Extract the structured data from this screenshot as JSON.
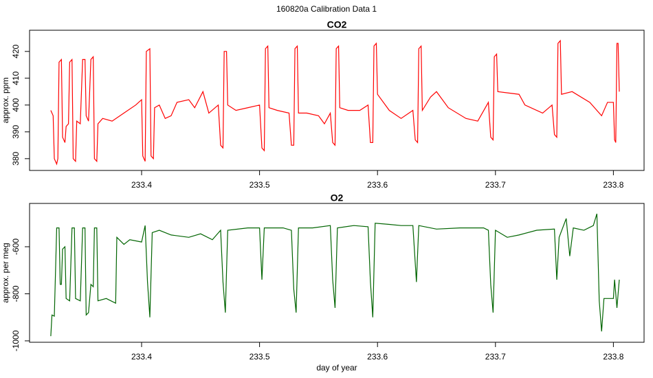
{
  "title": "160820a   Calibration Data 1",
  "chart_data": [
    {
      "type": "line",
      "title": "CO2",
      "ylabel": "approx. ppm",
      "color": "#ff0000",
      "xlim": [
        233.305,
        233.826
      ],
      "xticks": [
        233.4,
        233.5,
        233.6,
        233.7,
        233.8
      ],
      "ylim": [
        375.6,
        427.9
      ],
      "yticks": [
        380,
        390,
        400,
        410,
        420
      ],
      "x": [
        233.323,
        233.325,
        233.326,
        233.328,
        233.329,
        233.33,
        233.332,
        233.333,
        233.335,
        233.336,
        233.338,
        233.339,
        233.341,
        233.342,
        233.344,
        233.345,
        233.348,
        233.35,
        233.352,
        233.353,
        233.355,
        233.357,
        233.359,
        233.36,
        233.362,
        233.363,
        233.367,
        233.375,
        233.385,
        233.395,
        233.4,
        233.401,
        233.403,
        233.404,
        233.407,
        233.408,
        233.41,
        233.411,
        233.415,
        233.42,
        233.425,
        233.43,
        233.44,
        233.445,
        233.452,
        233.457,
        233.465,
        233.467,
        233.469,
        233.47,
        233.472,
        233.473,
        233.48,
        233.49,
        233.5,
        233.502,
        233.504,
        233.505,
        233.507,
        233.508,
        233.515,
        233.525,
        233.527,
        233.529,
        233.53,
        233.532,
        233.533,
        233.54,
        233.55,
        233.555,
        233.56,
        233.562,
        233.564,
        233.565,
        233.567,
        233.568,
        233.575,
        233.585,
        233.592,
        233.594,
        233.596,
        233.597,
        233.599,
        233.6,
        233.61,
        233.62,
        233.63,
        233.632,
        233.634,
        233.635,
        233.637,
        233.638,
        233.645,
        233.65,
        233.66,
        233.675,
        233.685,
        233.694,
        233.696,
        233.698,
        233.699,
        233.701,
        233.702,
        233.72,
        233.725,
        233.74,
        233.748,
        233.75,
        233.752,
        233.753,
        233.755,
        233.756,
        233.765,
        233.78,
        233.79,
        233.795,
        233.8,
        233.801,
        233.802,
        233.803,
        233.804,
        233.805
      ],
      "values": [
        398,
        396,
        380,
        378,
        380,
        416,
        417,
        388,
        386,
        392,
        393,
        416,
        417,
        380,
        379,
        394,
        393,
        417,
        417,
        396,
        394,
        417,
        418,
        380,
        379,
        393,
        395,
        394,
        397,
        400,
        402,
        381,
        379,
        420,
        421,
        381,
        380,
        399,
        400,
        395,
        396,
        401,
        402,
        399,
        405,
        397,
        400,
        385,
        384,
        420,
        420,
        400,
        398,
        399,
        400,
        384,
        383,
        421,
        422,
        399,
        398,
        397,
        385,
        385,
        421,
        422,
        397,
        397,
        396,
        393,
        397,
        386,
        385,
        421,
        422,
        399,
        398,
        398,
        400,
        386,
        386,
        422,
        423,
        404,
        398,
        395,
        398,
        387,
        386,
        421,
        422,
        398,
        403,
        405,
        399,
        395,
        394,
        401,
        388,
        387,
        418,
        419,
        405,
        404,
        400,
        397,
        400,
        389,
        388,
        423,
        424,
        404,
        405,
        401,
        396,
        401,
        401,
        387,
        386,
        423,
        423,
        405
      ]
    },
    {
      "type": "line",
      "title": "O2",
      "ylabel": "approx. per meg",
      "xlabel": "day of year",
      "color": "#006400",
      "xlim": [
        233.305,
        233.826
      ],
      "xticks": [
        233.4,
        233.5,
        233.6,
        233.7,
        233.8
      ],
      "ylim": [
        -1006,
        -416
      ],
      "yticks": [
        -1000,
        -800,
        -600
      ],
      "x": [
        233.323,
        233.324,
        233.326,
        233.328,
        233.33,
        233.331,
        233.332,
        233.333,
        233.335,
        233.336,
        233.339,
        233.341,
        233.343,
        233.344,
        233.348,
        233.35,
        233.352,
        233.353,
        233.355,
        233.357,
        233.359,
        233.36,
        233.362,
        233.363,
        233.37,
        233.378,
        233.379,
        233.385,
        233.39,
        233.4,
        233.403,
        233.405,
        233.407,
        233.409,
        233.415,
        233.425,
        233.44,
        233.45,
        233.46,
        233.467,
        233.469,
        233.471,
        233.473,
        233.49,
        233.5,
        233.502,
        233.504,
        233.52,
        233.527,
        233.529,
        233.531,
        233.533,
        233.545,
        233.56,
        233.562,
        233.564,
        233.566,
        233.58,
        233.592,
        233.594,
        233.596,
        233.598,
        233.61,
        233.62,
        233.63,
        233.633,
        233.635,
        233.65,
        233.67,
        233.69,
        233.694,
        233.696,
        233.698,
        233.7,
        233.71,
        233.72,
        233.735,
        233.75,
        233.752,
        233.754,
        233.76,
        233.763,
        233.766,
        233.775,
        233.783,
        233.786,
        233.788,
        233.79,
        233.792,
        233.8,
        233.801,
        233.803,
        233.805
      ],
      "values": [
        -980,
        -890,
        -895,
        -520,
        -520,
        -760,
        -760,
        -610,
        -600,
        -820,
        -830,
        -520,
        -520,
        -820,
        -830,
        -520,
        -520,
        -890,
        -880,
        -760,
        -770,
        -520,
        -520,
        -830,
        -820,
        -840,
        -560,
        -590,
        -570,
        -580,
        -510,
        -750,
        -900,
        -540,
        -530,
        -550,
        -560,
        -545,
        -570,
        -530,
        -750,
        -880,
        -530,
        -520,
        -520,
        -740,
        -520,
        -520,
        -530,
        -780,
        -880,
        -520,
        -520,
        -510,
        -740,
        -860,
        -520,
        -510,
        -515,
        -750,
        -900,
        -500,
        -505,
        -510,
        -510,
        -750,
        -510,
        -525,
        -520,
        -520,
        -530,
        -760,
        -880,
        -530,
        -560,
        -550,
        -530,
        -525,
        -740,
        -560,
        -480,
        -640,
        -520,
        -530,
        -510,
        -460,
        -830,
        -960,
        -820,
        -820,
        -740,
        -860,
        -740
      ]
    }
  ]
}
